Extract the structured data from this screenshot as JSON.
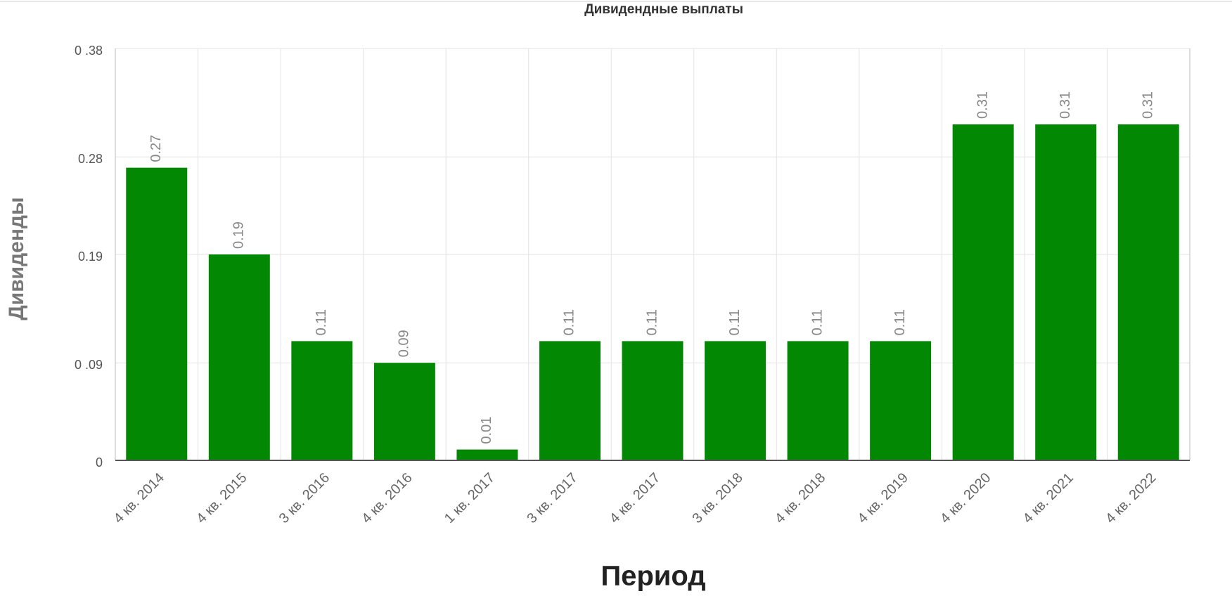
{
  "chart_data": {
    "type": "bar",
    "title": "Дивидендные выплаты",
    "x_label": "Период",
    "y_label": "Дивиденды",
    "categories": [
      "4 кв. 2014",
      "4 кв. 2015",
      "3 кв. 2016",
      "4 кв. 2016",
      "1 кв. 2017",
      "3 кв. 2017",
      "4 кв. 2017",
      "3 кв. 2018",
      "4 кв. 2018",
      "4 кв. 2019",
      "4 кв. 2020",
      "4 кв. 2021",
      "4 кв. 2022"
    ],
    "values": [
      0.27,
      0.19,
      0.11,
      0.09,
      0.01,
      0.11,
      0.11,
      0.11,
      0.11,
      0.11,
      0.31,
      0.31,
      0.31
    ],
    "color": "#028802",
    "ylim": [
      0,
      0.38
    ],
    "yticks": [
      0,
      {
        "value": 0.09,
        "label": "0 .09"
      },
      0.19,
      0.28,
      {
        "value": 0.38,
        "label": "0 .38"
      }
    ],
    "grid": true
  }
}
